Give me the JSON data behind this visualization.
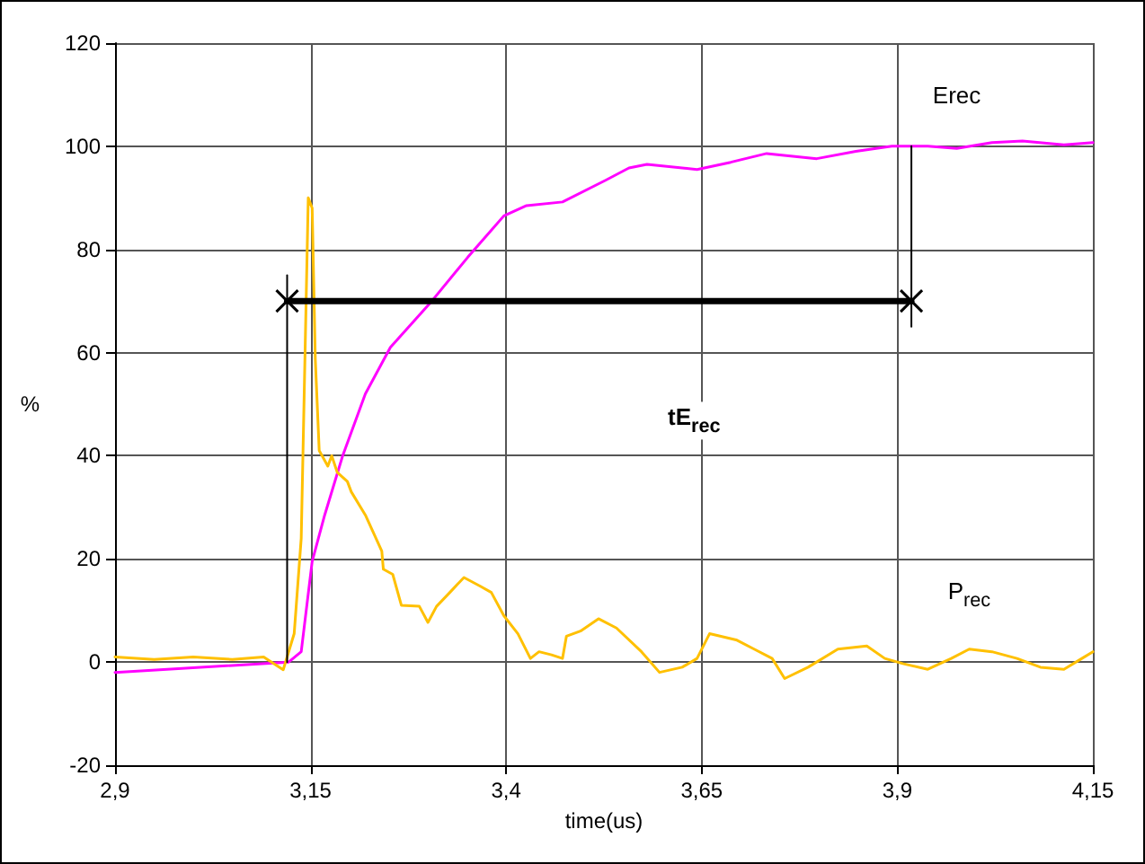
{
  "chart_data": {
    "type": "line",
    "xlabel": "time(us)",
    "ylabel": "%",
    "xlim": [
      2.9,
      4.15
    ],
    "xticks": [
      {
        "value": 2.9,
        "label": "2,9"
      },
      {
        "value": 3.15,
        "label": "3,15"
      },
      {
        "value": 3.4,
        "label": "3,4"
      },
      {
        "value": 3.65,
        "label": "3,65"
      },
      {
        "value": 3.9,
        "label": "3,9"
      },
      {
        "value": 4.15,
        "label": "4,15"
      }
    ],
    "ylim": [
      -20,
      120
    ],
    "yticks": [
      -20,
      0,
      20,
      40,
      60,
      80,
      100,
      120
    ],
    "grid": true,
    "legend": false,
    "marker": "none",
    "line_style": "solid",
    "series": [
      {
        "name": "Erec",
        "color": "#ff00ff",
        "x": [
          2.9,
          3.122,
          3.138,
          3.152,
          3.168,
          3.191,
          3.22,
          3.252,
          3.305,
          3.351,
          3.397,
          3.426,
          3.472,
          3.527,
          3.557,
          3.58,
          3.644,
          3.687,
          3.733,
          3.797,
          3.847,
          3.893,
          3.939,
          3.976,
          4.021,
          4.06,
          4.113,
          4.15
        ],
        "values": [
          -2,
          0,
          2,
          19.5,
          28.5,
          40,
          52,
          61,
          70,
          78.5,
          86.5,
          88.5,
          89.2,
          93.4,
          95.8,
          96.5,
          95.5,
          96.9,
          98.6,
          97.6,
          99,
          100,
          100,
          99.6,
          100.7,
          101,
          100.3,
          100.7
        ]
      },
      {
        "name": "P$_{rec}$",
        "color": "#ffc000",
        "x": [
          2.9,
          2.95,
          3.0,
          3.05,
          3.09,
          3.1,
          3.115,
          3.129,
          3.138,
          3.147,
          3.152,
          3.156,
          3.161,
          3.172,
          3.177,
          3.184,
          3.197,
          3.202,
          3.22,
          3.241,
          3.243,
          3.255,
          3.266,
          3.289,
          3.3,
          3.311,
          3.328,
          3.346,
          3.367,
          3.381,
          3.397,
          3.415,
          3.431,
          3.442,
          3.458,
          3.472,
          3.477,
          3.495,
          3.518,
          3.541,
          3.573,
          3.596,
          3.625,
          3.644,
          3.66,
          3.694,
          3.717,
          3.74,
          3.756,
          3.786,
          3.824,
          3.861,
          3.884,
          3.907,
          3.939,
          3.969,
          3.992,
          4.021,
          4.053,
          4.083,
          4.113,
          4.136,
          4.15
        ],
        "values": [
          1,
          0.5,
          1,
          0.5,
          1,
          0,
          -1.5,
          5.5,
          24,
          90,
          88,
          58.7,
          41,
          38,
          40,
          36.8,
          35,
          33,
          28.5,
          21.5,
          18,
          17,
          11,
          10.8,
          7.7,
          10.8,
          13.5,
          16.4,
          14.7,
          13.5,
          9,
          5.5,
          0.7,
          2,
          1.4,
          0.7,
          5,
          6,
          8.4,
          6.6,
          2,
          -2,
          -1,
          0.7,
          5.5,
          4.3,
          2.5,
          0.7,
          -3.2,
          -1,
          2.5,
          3.1,
          0.7,
          -0.3,
          -1.4,
          0.7,
          2.5,
          2,
          0.7,
          -1,
          -1.4,
          0.7,
          2
        ]
      },
      {
        "color": "#000000",
        "x": [
          3.12,
          3.12
        ],
        "values": [
          0,
          75
        ]
      },
      {
        "color": "#000000",
        "x": [
          3.918,
          3.918
        ],
        "values": [
          100,
          65
        ]
      },
      {
        "color": "#000000",
        "marker": "cross",
        "x": [
          3.12,
          3.918
        ],
        "values": [
          70,
          70
        ]
      }
    ],
    "annotations": [
      "tE$_{rec}$"
    ]
  }
}
